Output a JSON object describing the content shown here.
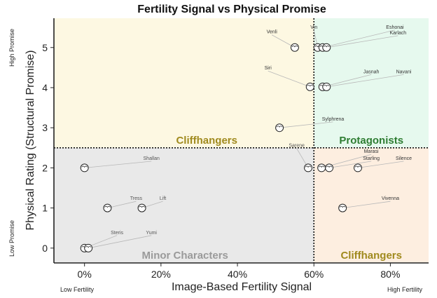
{
  "chart_data": {
    "type": "scatter",
    "title": "Fertility Signal vs Physical Promise",
    "xlabel": "Image-Based Fertility Signal",
    "ylabel": "Physical Rating (Structural Promise)",
    "xlim": [
      -0.08,
      0.9
    ],
    "ylim": [
      -0.37,
      5.73
    ],
    "x_ticks": [
      0,
      0.2,
      0.4,
      0.6,
      0.8
    ],
    "x_tick_labels": [
      "0%",
      "20%",
      "40%",
      "60%",
      "80%"
    ],
    "y_ticks": [
      0,
      1,
      2,
      3,
      4,
      5
    ],
    "y_tick_labels": [
      "0",
      "1",
      "2",
      "3",
      "4",
      "5"
    ],
    "x_threshold": 0.6,
    "y_threshold": 2.5,
    "x_end_labels": {
      "low": "Low Fertility",
      "high": "High Fertility"
    },
    "y_end_labels": {
      "low": "Low Promise",
      "high": "High Promise"
    },
    "quadrants": [
      {
        "name": "Cliffhangers",
        "region": "top-left",
        "color": "#fdf8e2",
        "label_color": "#a08a1e"
      },
      {
        "name": "Protagonists",
        "region": "top-right",
        "color": "#e6f9ee",
        "label_color": "#2e7d32"
      },
      {
        "name": "Minor Characters",
        "region": "bottom-left",
        "color": "#e9e9e9",
        "label_color": "#9a9a9a"
      },
      {
        "name": "Cliffhangers",
        "region": "bottom-right",
        "color": "#fdeee0",
        "label_color": "#a08a1e"
      }
    ],
    "points": [
      {
        "name": "Venli",
        "x": 0.55,
        "y": 5,
        "lx": 0.49,
        "ly": 5.35,
        "label_style": "dark"
      },
      {
        "name": "Vin",
        "x": 0.61,
        "y": 5,
        "lx": 0.6,
        "ly": 5.47,
        "label_style": "dark"
      },
      {
        "name": "Eshonai",
        "x": 0.623,
        "y": 5,
        "lx": 0.812,
        "ly": 5.47,
        "label_style": "dark"
      },
      {
        "name": "Karlach",
        "x": 0.633,
        "y": 5,
        "lx": 0.82,
        "ly": 5.33,
        "label_style": "dark"
      },
      {
        "name": "Siri",
        "x": 0.59,
        "y": 4.02,
        "lx": 0.48,
        "ly": 4.45,
        "label_style": "dark"
      },
      {
        "name": "Jasnah",
        "x": 0.623,
        "y": 4.02,
        "lx": 0.75,
        "ly": 4.36,
        "label_style": "dark"
      },
      {
        "name": "Navani",
        "x": 0.633,
        "y": 4.02,
        "lx": 0.835,
        "ly": 4.36,
        "label_style": "dark"
      },
      {
        "name": "Sylphrena",
        "x": 0.51,
        "y": 3.0,
        "lx": 0.65,
        "ly": 3.18,
        "label_style": "dark"
      },
      {
        "name": "Sarene",
        "x": 0.585,
        "y": 2.0,
        "lx": 0.555,
        "ly": 2.52,
        "label_style": "faint"
      },
      {
        "name": "Marasi",
        "x": 0.62,
        "y": 2.0,
        "lx": 0.75,
        "ly": 2.37,
        "label_style": "dark"
      },
      {
        "name": "Starling",
        "x": 0.64,
        "y": 2.0,
        "lx": 0.75,
        "ly": 2.2,
        "label_style": "dark"
      },
      {
        "name": "Silence",
        "x": 0.715,
        "y": 2.0,
        "lx": 0.835,
        "ly": 2.2,
        "label_style": "dark"
      },
      {
        "name": "Vivenna",
        "x": 0.675,
        "y": 1.0,
        "lx": 0.8,
        "ly": 1.2,
        "label_style": "dark"
      },
      {
        "name": "Shallan",
        "x": 0.0,
        "y": 2.0,
        "lx": 0.175,
        "ly": 2.2,
        "label_style": "faint"
      },
      {
        "name": "Tress",
        "x": 0.06,
        "y": 1.0,
        "lx": 0.135,
        "ly": 1.2,
        "label_style": "faint"
      },
      {
        "name": "Lift",
        "x": 0.15,
        "y": 1.0,
        "lx": 0.205,
        "ly": 1.2,
        "label_style": "faint"
      },
      {
        "name": "Steris",
        "x": 0.0,
        "y": 0.0,
        "lx": 0.085,
        "ly": 0.35,
        "label_style": "faint"
      },
      {
        "name": "Yumi",
        "x": 0.01,
        "y": 0.0,
        "lx": 0.175,
        "ly": 0.35,
        "label_style": "faint"
      }
    ]
  }
}
